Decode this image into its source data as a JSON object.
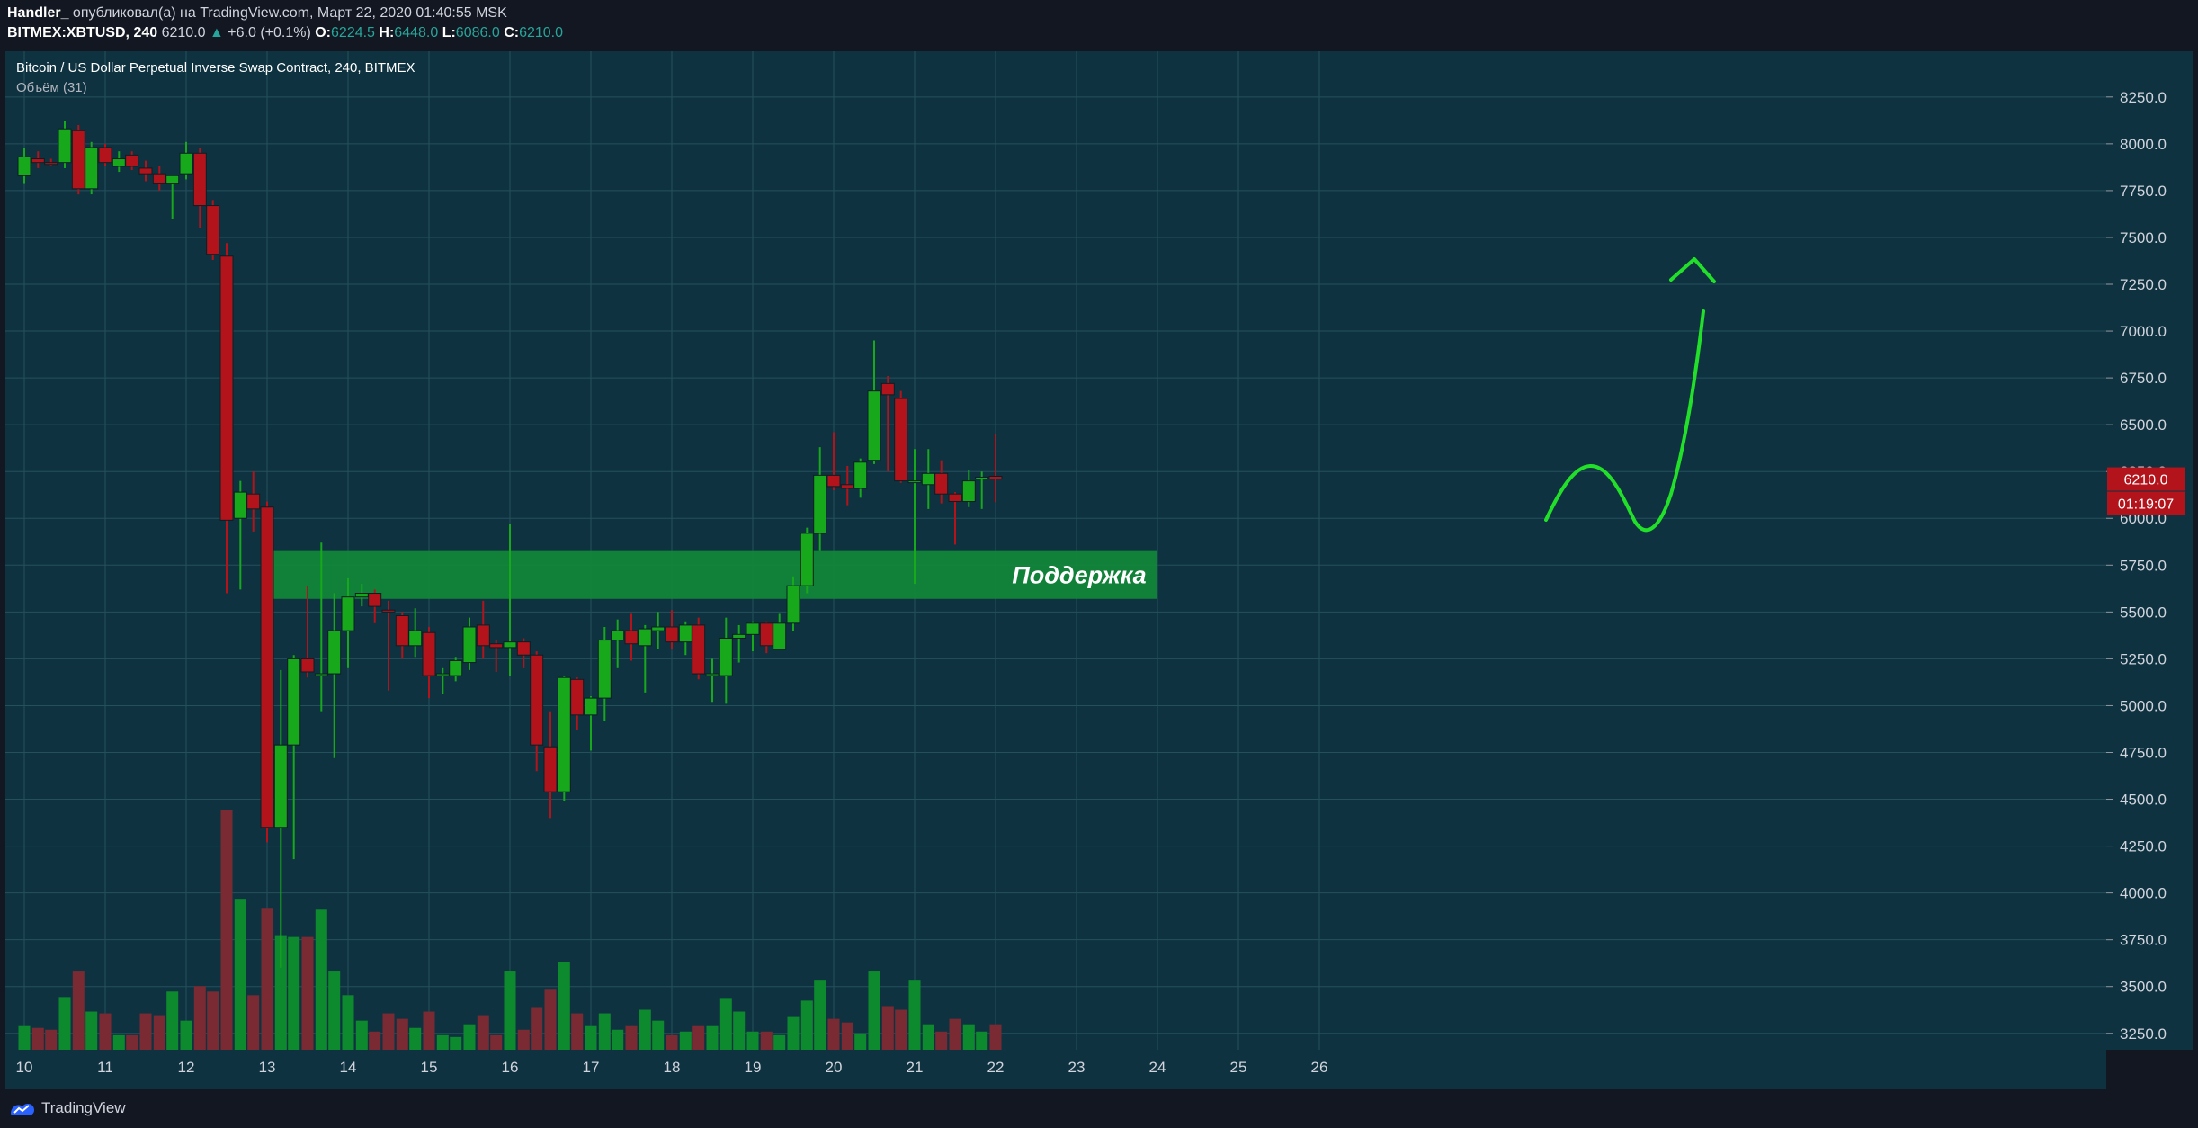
{
  "header": {
    "author": "Handler_",
    "published": "опубликовал(а) на TradingView.com, Март 22, 2020 01:40:55 MSK",
    "symbol": "BITMEX:XBTUSD, 240",
    "last": "6210.0",
    "change_arrow": "▲",
    "change": "+6.0 (+0.1%)",
    "o_label": "O:",
    "o_value": "6224.5",
    "h_label": "H:",
    "h_value": "6448.0",
    "l_label": "L:",
    "l_value": "6086.0",
    "c_label": "C:",
    "c_value": "6210.0"
  },
  "footer": {
    "brand": "TradingView",
    "logo_icon": "tradingview-logo-icon"
  },
  "chart_data": {
    "type": "candlestick",
    "title": "Bitcoin / US Dollar Perpetual Inverse Swap Contract, 240, BITMEX",
    "volume_label": "Объём (31)",
    "x_ticks": [
      "10",
      "11",
      "12",
      "13",
      "14",
      "15",
      "16",
      "17",
      "18",
      "19",
      "20",
      "21",
      "22",
      "23",
      "24",
      "25",
      "26"
    ],
    "ylim": [
      3100,
      8350
    ],
    "y_ticks": [
      3250,
      3500,
      3750,
      4000,
      4250,
      4500,
      4750,
      5000,
      5250,
      5500,
      5750,
      6000,
      6250,
      6500,
      6750,
      7000,
      7250,
      7500,
      7750,
      8000,
      8250
    ],
    "y_tick_labels": [
      "3250.0",
      "3500.0",
      "3750.0",
      "4000.0",
      "4250.0",
      "4500.0",
      "4750.0",
      "5000.0",
      "5250.0",
      "5500.0",
      "5750.0",
      "6000.0",
      "6250.0",
      "6500.0",
      "6750.0",
      "7000.0",
      "7250.0",
      "7500.0",
      "7750.0",
      "8000.0",
      "8250.0"
    ],
    "last_price_label": "6210.0",
    "countdown_label": "01:19:07",
    "last_price": 6210,
    "support_zone": {
      "label": "Поддержка",
      "low": 5570,
      "high": 5830,
      "x_start": 13.0,
      "x_end": 24.0
    },
    "colors": {
      "up": "#17a81b",
      "down": "#b3141c",
      "vol_up": "#0e8a2e",
      "vol_down": "#7a2a32",
      "background": "#0e3240",
      "grid": "#24505c",
      "zone": "#11883a",
      "arrow": "#22e02a",
      "last_price": "#b3141c"
    },
    "candles": [
      {
        "t": 10.0,
        "o": 7830,
        "h": 7980,
        "l": 7790,
        "c": 7930,
        "v": 3230
      },
      {
        "t": 10.17,
        "o": 7920,
        "h": 7960,
        "l": 7870,
        "c": 7900,
        "v": 3220
      },
      {
        "t": 10.33,
        "o": 7900,
        "h": 7920,
        "l": 7880,
        "c": 7890,
        "v": 3210
      },
      {
        "t": 10.5,
        "o": 7900,
        "h": 8120,
        "l": 7870,
        "c": 8080,
        "v": 3390
      },
      {
        "t": 10.67,
        "o": 8070,
        "h": 8100,
        "l": 7730,
        "c": 7760,
        "v": 3530
      },
      {
        "t": 10.83,
        "o": 7760,
        "h": 8010,
        "l": 7730,
        "c": 7980,
        "v": 3310
      },
      {
        "t": 11.0,
        "o": 7980,
        "h": 8000,
        "l": 7880,
        "c": 7900,
        "v": 3300
      },
      {
        "t": 11.17,
        "o": 7880,
        "h": 7960,
        "l": 7850,
        "c": 7920,
        "v": 3180
      },
      {
        "t": 11.33,
        "o": 7940,
        "h": 7960,
        "l": 7860,
        "c": 7880,
        "v": 3180
      },
      {
        "t": 11.5,
        "o": 7870,
        "h": 7910,
        "l": 7800,
        "c": 7840,
        "v": 3300
      },
      {
        "t": 11.67,
        "o": 7840,
        "h": 7880,
        "l": 7750,
        "c": 7790,
        "v": 3290
      },
      {
        "t": 11.83,
        "o": 7790,
        "h": 7830,
        "l": 7600,
        "c": 7830,
        "v": 3420
      },
      {
        "t": 12.0,
        "o": 7840,
        "h": 8010,
        "l": 7810,
        "c": 7950,
        "v": 3260
      },
      {
        "t": 12.17,
        "o": 7950,
        "h": 7980,
        "l": 7550,
        "c": 7670,
        "v": 3450
      },
      {
        "t": 12.33,
        "o": 7670,
        "h": 7700,
        "l": 7380,
        "c": 7410,
        "v": 3420
      },
      {
        "t": 12.5,
        "o": 7400,
        "h": 7470,
        "l": 5600,
        "c": 5990,
        "v": 4420
      },
      {
        "t": 12.67,
        "o": 6000,
        "h": 6200,
        "l": 5620,
        "c": 6140,
        "v": 3930
      },
      {
        "t": 12.83,
        "o": 6130,
        "h": 6250,
        "l": 5930,
        "c": 6050,
        "v": 3400
      },
      {
        "t": 13.0,
        "o": 6060,
        "h": 6090,
        "l": 4270,
        "c": 4350,
        "v": 3880
      },
      {
        "t": 13.17,
        "o": 4350,
        "h": 5190,
        "l": 3600,
        "c": 4790,
        "v": 3730
      },
      {
        "t": 13.33,
        "o": 4790,
        "h": 5270,
        "l": 4180,
        "c": 5250,
        "v": 3720
      },
      {
        "t": 13.5,
        "o": 5250,
        "h": 5640,
        "l": 5150,
        "c": 5180,
        "v": 3720
      },
      {
        "t": 13.67,
        "o": 5170,
        "h": 5870,
        "l": 4970,
        "c": 5170,
        "v": 3870
      },
      {
        "t": 13.83,
        "o": 5170,
        "h": 5600,
        "l": 4720,
        "c": 5400,
        "v": 3530
      },
      {
        "t": 14.0,
        "o": 5400,
        "h": 5680,
        "l": 5200,
        "c": 5580,
        "v": 3400
      },
      {
        "t": 14.17,
        "o": 5580,
        "h": 5650,
        "l": 5530,
        "c": 5600,
        "v": 3260
      },
      {
        "t": 14.33,
        "o": 5600,
        "h": 5620,
        "l": 5440,
        "c": 5530,
        "v": 3200
      },
      {
        "t": 14.5,
        "o": 5510,
        "h": 5560,
        "l": 5080,
        "c": 5500,
        "v": 3300
      },
      {
        "t": 14.67,
        "o": 5480,
        "h": 5500,
        "l": 5250,
        "c": 5320,
        "v": 3270
      },
      {
        "t": 14.83,
        "o": 5320,
        "h": 5520,
        "l": 5260,
        "c": 5400,
        "v": 3220
      },
      {
        "t": 15.0,
        "o": 5390,
        "h": 5420,
        "l": 5040,
        "c": 5160,
        "v": 3310
      },
      {
        "t": 15.17,
        "o": 5160,
        "h": 5200,
        "l": 5060,
        "c": 5170,
        "v": 3180
      },
      {
        "t": 15.33,
        "o": 5160,
        "h": 5260,
        "l": 5130,
        "c": 5240,
        "v": 3170
      },
      {
        "t": 15.5,
        "o": 5230,
        "h": 5470,
        "l": 5190,
        "c": 5420,
        "v": 3240
      },
      {
        "t": 15.67,
        "o": 5430,
        "h": 5560,
        "l": 5250,
        "c": 5320,
        "v": 3290
      },
      {
        "t": 15.83,
        "o": 5330,
        "h": 5350,
        "l": 5180,
        "c": 5310,
        "v": 3180
      },
      {
        "t": 16.0,
        "o": 5310,
        "h": 5970,
        "l": 5160,
        "c": 5340,
        "v": 3530
      },
      {
        "t": 16.17,
        "o": 5340,
        "h": 5360,
        "l": 5200,
        "c": 5270,
        "v": 3210
      },
      {
        "t": 16.33,
        "o": 5270,
        "h": 5290,
        "l": 4650,
        "c": 4790,
        "v": 3330
      },
      {
        "t": 16.5,
        "o": 4780,
        "h": 4970,
        "l": 4400,
        "c": 4540,
        "v": 3430
      },
      {
        "t": 16.67,
        "o": 4540,
        "h": 5160,
        "l": 4490,
        "c": 5150,
        "v": 3580
      },
      {
        "t": 16.83,
        "o": 5140,
        "h": 5150,
        "l": 4870,
        "c": 4950,
        "v": 3300
      },
      {
        "t": 17.0,
        "o": 4950,
        "h": 5050,
        "l": 4760,
        "c": 5040,
        "v": 3230
      },
      {
        "t": 17.17,
        "o": 5040,
        "h": 5420,
        "l": 4920,
        "c": 5350,
        "v": 3300
      },
      {
        "t": 17.33,
        "o": 5350,
        "h": 5460,
        "l": 5200,
        "c": 5400,
        "v": 3210
      },
      {
        "t": 17.5,
        "o": 5400,
        "h": 5490,
        "l": 5240,
        "c": 5330,
        "v": 3230
      },
      {
        "t": 17.67,
        "o": 5320,
        "h": 5430,
        "l": 5070,
        "c": 5410,
        "v": 3320
      },
      {
        "t": 17.83,
        "o": 5400,
        "h": 5500,
        "l": 5300,
        "c": 5420,
        "v": 3260
      },
      {
        "t": 18.0,
        "o": 5420,
        "h": 5510,
        "l": 5300,
        "c": 5340,
        "v": 3180
      },
      {
        "t": 18.17,
        "o": 5340,
        "h": 5450,
        "l": 5270,
        "c": 5430,
        "v": 3200
      },
      {
        "t": 18.33,
        "o": 5430,
        "h": 5470,
        "l": 5140,
        "c": 5170,
        "v": 3230
      },
      {
        "t": 18.5,
        "o": 5170,
        "h": 5250,
        "l": 5020,
        "c": 5170,
        "v": 3230
      },
      {
        "t": 18.67,
        "o": 5160,
        "h": 5470,
        "l": 5010,
        "c": 5360,
        "v": 3380
      },
      {
        "t": 18.83,
        "o": 5360,
        "h": 5430,
        "l": 5230,
        "c": 5380,
        "v": 3310
      },
      {
        "t": 19.0,
        "o": 5380,
        "h": 5450,
        "l": 5290,
        "c": 5440,
        "v": 3200
      },
      {
        "t": 19.17,
        "o": 5440,
        "h": 5450,
        "l": 5280,
        "c": 5320,
        "v": 3200
      },
      {
        "t": 19.33,
        "o": 5300,
        "h": 5490,
        "l": 5300,
        "c": 5440,
        "v": 3180
      },
      {
        "t": 19.5,
        "o": 5440,
        "h": 5690,
        "l": 5400,
        "c": 5640,
        "v": 3280
      },
      {
        "t": 19.67,
        "o": 5640,
        "h": 5950,
        "l": 5600,
        "c": 5920,
        "v": 3370
      },
      {
        "t": 19.83,
        "o": 5920,
        "h": 6380,
        "l": 5830,
        "c": 6230,
        "v": 3480
      },
      {
        "t": 20.0,
        "o": 6230,
        "h": 6460,
        "l": 6150,
        "c": 6170,
        "v": 3270
      },
      {
        "t": 20.17,
        "o": 6180,
        "h": 6280,
        "l": 6070,
        "c": 6160,
        "v": 3250
      },
      {
        "t": 20.33,
        "o": 6160,
        "h": 6320,
        "l": 6110,
        "c": 6300,
        "v": 3190
      },
      {
        "t": 20.5,
        "o": 6310,
        "h": 6950,
        "l": 6290,
        "c": 6680,
        "v": 3530
      },
      {
        "t": 20.67,
        "o": 6720,
        "h": 6760,
        "l": 6250,
        "c": 6660,
        "v": 3340
      },
      {
        "t": 20.83,
        "o": 6640,
        "h": 6680,
        "l": 6190,
        "c": 6200,
        "v": 3320
      },
      {
        "t": 21.0,
        "o": 6200,
        "h": 6370,
        "l": 5650,
        "c": 6200,
        "v": 3480
      },
      {
        "t": 21.17,
        "o": 6180,
        "h": 6370,
        "l": 6050,
        "c": 6240,
        "v": 3240
      },
      {
        "t": 21.33,
        "o": 6240,
        "h": 6310,
        "l": 6080,
        "c": 6130,
        "v": 3200
      },
      {
        "t": 21.5,
        "o": 6130,
        "h": 6140,
        "l": 5860,
        "c": 6090,
        "v": 3270
      },
      {
        "t": 21.67,
        "o": 6090,
        "h": 6260,
        "l": 6060,
        "c": 6200,
        "v": 3240
      },
      {
        "t": 21.83,
        "o": 6210,
        "h": 6250,
        "l": 6050,
        "c": 6220,
        "v": 3200
      },
      {
        "t": 22.0,
        "o": 6224.5,
        "h": 6448,
        "l": 6086,
        "c": 6210,
        "v": 3240
      }
    ]
  }
}
